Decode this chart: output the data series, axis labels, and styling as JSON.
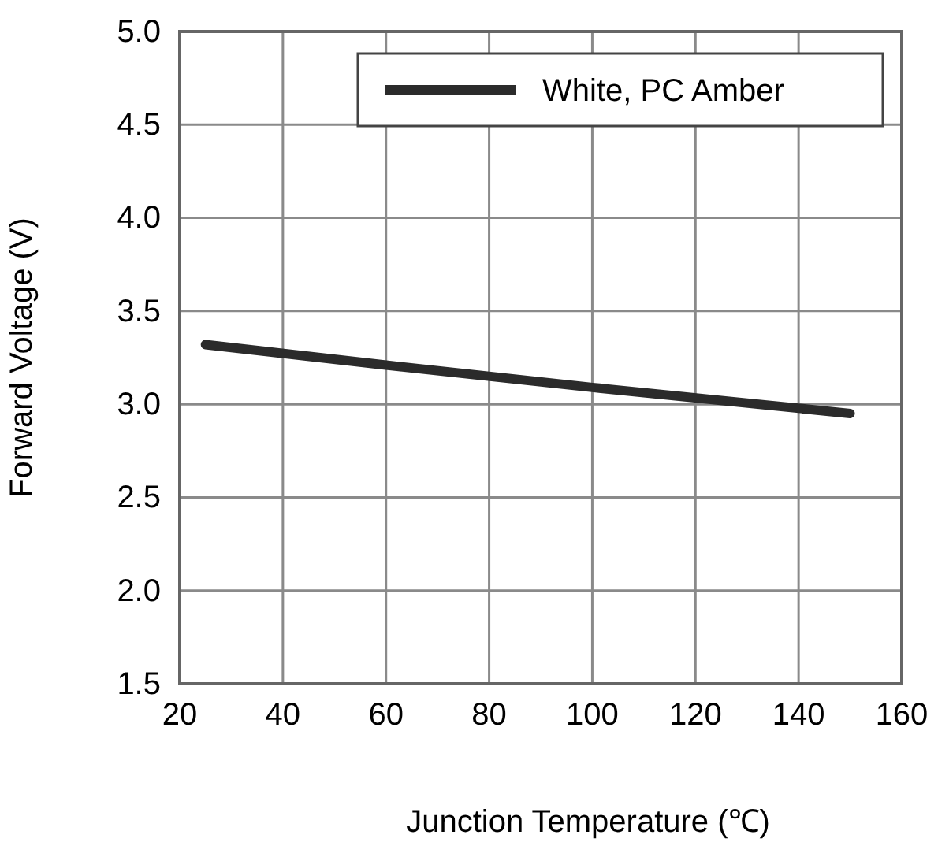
{
  "chart_data": {
    "type": "line",
    "xlabel": "Junction Temperature (℃)",
    "ylabel": "Forward Voltage (V)",
    "xlim": [
      20,
      160
    ],
    "xticks": [
      20,
      40,
      60,
      80,
      100,
      120,
      140,
      160
    ],
    "ylim": [
      1.5,
      5.0
    ],
    "yticks": [
      {
        "value": 1.5,
        "label": "1.5"
      },
      {
        "value": 2.0,
        "label": "2.0"
      },
      {
        "value": 2.5,
        "label": "2.5"
      },
      {
        "value": 3.0,
        "label": "3.0"
      },
      {
        "value": 3.5,
        "label": "3.5"
      },
      {
        "value": 4.0,
        "label": "4.0"
      },
      {
        "value": 4.5,
        "label": "4.5"
      },
      {
        "value": 5.0,
        "label": "5.0"
      }
    ],
    "grid": true,
    "legend": "top right",
    "marker": "none",
    "line_style": "solid",
    "series": [
      {
        "name": "White, PC Amber",
        "color": "#2b2b2b",
        "x": [
          25,
          60,
          100,
          150
        ],
        "values": [
          3.32,
          3.21,
          3.09,
          2.95
        ]
      }
    ]
  }
}
